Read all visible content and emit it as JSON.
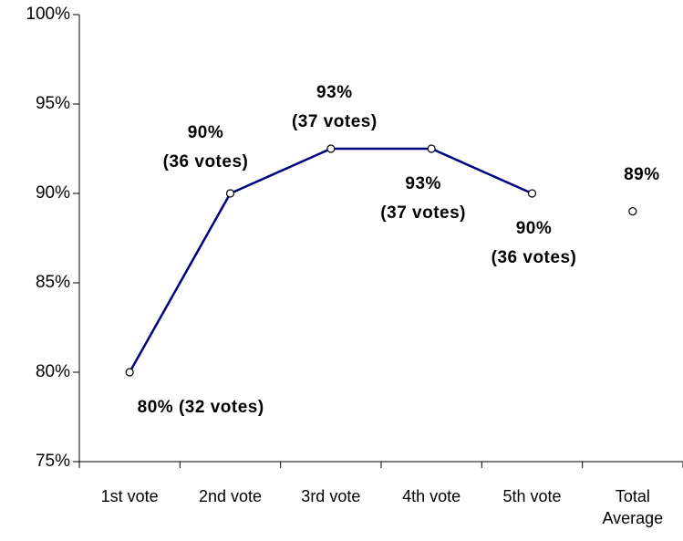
{
  "chart_data": {
    "type": "line",
    "categories": [
      "1st vote",
      "2nd vote",
      "3rd vote",
      "4th vote",
      "5th vote",
      "Total\nAverage"
    ],
    "series": [
      {
        "color": "#000080",
        "line": true,
        "values": [
          80,
          90,
          92.5,
          92.5,
          90,
          null
        ],
        "value_labels": [
          "80% (32 votes)",
          "90%\n(36 votes)",
          "93%\n(37 votes)",
          "93%\n(37 votes)",
          "90%\n(36 votes)",
          null
        ]
      },
      {
        "color": "#000080",
        "line": false,
        "values": [
          null,
          null,
          null,
          null,
          null,
          89
        ],
        "value_labels": [
          null,
          null,
          null,
          null,
          null,
          "89%"
        ]
      }
    ],
    "ylim": [
      75,
      100
    ],
    "yticks": [
      {
        "value": 75,
        "label": "75%"
      },
      {
        "value": 80,
        "label": "80%"
      },
      {
        "value": 85,
        "label": "85%"
      },
      {
        "value": 90,
        "label": "90%"
      },
      {
        "value": 95,
        "label": "95%"
      },
      {
        "value": 100,
        "label": "100%"
      }
    ],
    "grid": false
  }
}
